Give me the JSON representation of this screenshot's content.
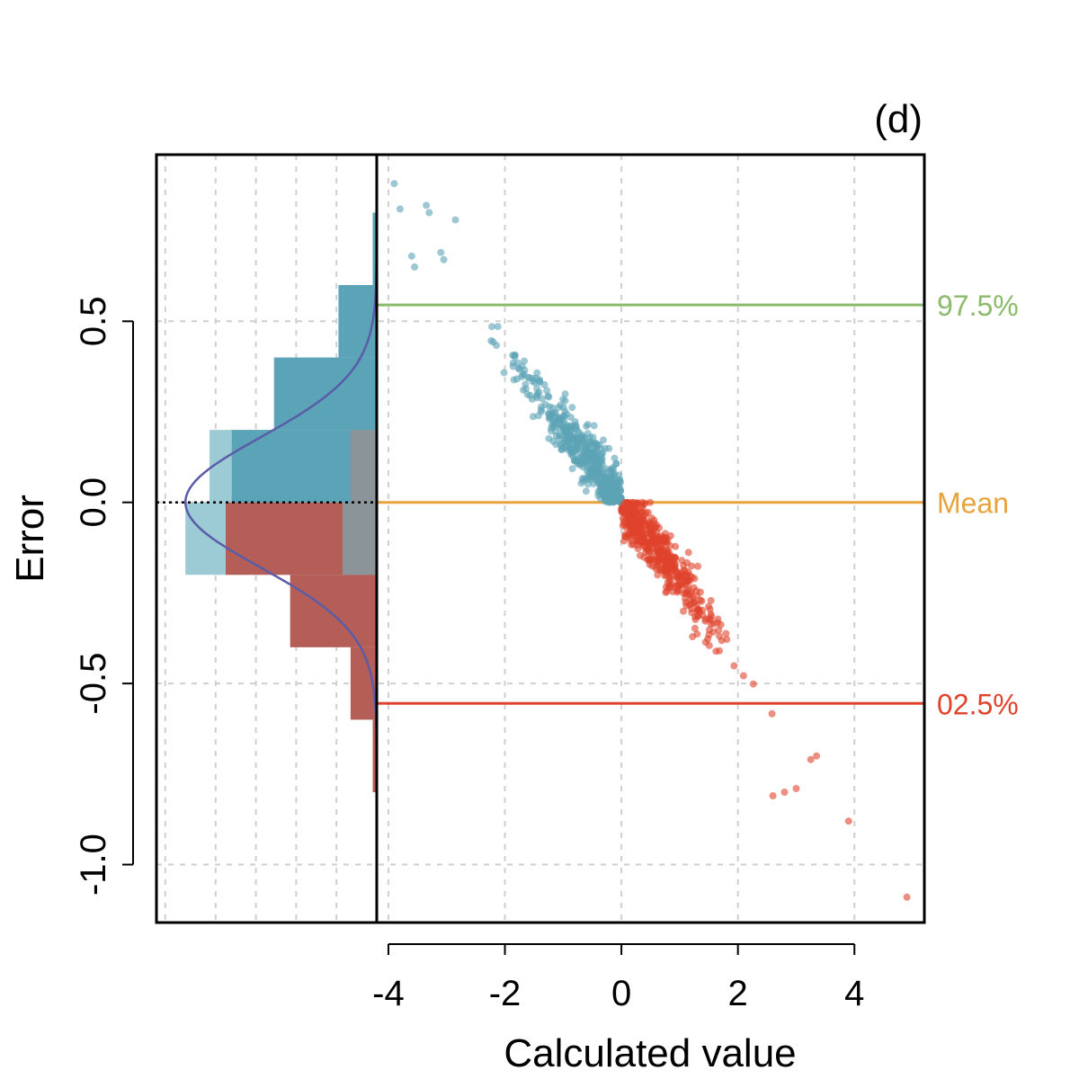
{
  "chart_data": {
    "type": "scatter",
    "panel_label": "(d)",
    "xlabel": "Calculated value",
    "ylabel": "Error",
    "xlim": [
      -4.2,
      5.2
    ],
    "ylim": [
      -1.16,
      0.96
    ],
    "x_ticks": [
      -4,
      -2,
      0,
      2,
      4
    ],
    "x_tick_labels": [
      "-4",
      "-2",
      "0",
      "2",
      "4"
    ],
    "y_ticks": [
      -1.0,
      -0.5,
      0.0,
      0.5
    ],
    "y_tick_labels": [
      "-1.0",
      "-0.5",
      "0.0",
      "0.5"
    ],
    "grid": true,
    "reference_lines": [
      {
        "name": "upper-quantile",
        "label": "97.5%",
        "value": 0.545,
        "color": "#8aba6a"
      },
      {
        "name": "mean",
        "label": "Mean",
        "value": 0.0,
        "color": "#e8a33d"
      },
      {
        "name": "lower-quantile",
        "label": "02.5%",
        "value": -0.555,
        "color": "#e0432b"
      }
    ],
    "zero_dotted_line": 0.0,
    "scatter": {
      "relationship": "error ≈ -0.2 × calculated value",
      "n_points_approx": 1000,
      "positive_error_color": "#5ba3b6",
      "negative_error_color": "#e0432b",
      "outliers": [
        {
          "x": -3.9,
          "y": 0.88
        },
        {
          "x": -3.8,
          "y": 0.81
        },
        {
          "x": -3.35,
          "y": 0.82
        },
        {
          "x": -3.3,
          "y": 0.8
        },
        {
          "x": -2.85,
          "y": 0.78
        },
        {
          "x": -3.1,
          "y": 0.69
        },
        {
          "x": -3.6,
          "y": 0.68
        },
        {
          "x": -3.55,
          "y": 0.65
        },
        {
          "x": -3.05,
          "y": 0.67
        },
        {
          "x": 2.6,
          "y": -0.81
        },
        {
          "x": 2.8,
          "y": -0.8
        },
        {
          "x": 3.0,
          "y": -0.79
        },
        {
          "x": 3.25,
          "y": -0.71
        },
        {
          "x": 3.35,
          "y": -0.7
        },
        {
          "x": 3.9,
          "y": -0.88
        },
        {
          "x": 4.9,
          "y": -1.09
        }
      ]
    },
    "histogram": {
      "orientation": "horizontal",
      "bin_edges": [
        -0.8,
        -0.6,
        -0.4,
        -0.2,
        0.0,
        0.2,
        0.4,
        0.6,
        0.8
      ],
      "negative_error_bars": [
        {
          "from": -0.8,
          "to": -0.6,
          "value": 0.02
        },
        {
          "from": -0.6,
          "to": -0.4,
          "value": 0.13
        },
        {
          "from": -0.4,
          "to": -0.2,
          "value": 0.43
        },
        {
          "from": -0.2,
          "to": 0.0,
          "value": 0.75
        }
      ],
      "positive_error_bars": [
        {
          "from": 0.0,
          "to": 0.2,
          "value": 0.72
        },
        {
          "from": 0.2,
          "to": 0.4,
          "value": 0.51
        },
        {
          "from": 0.4,
          "to": 0.6,
          "value": 0.19
        },
        {
          "from": 0.6,
          "to": 0.8,
          "value": 0.02
        }
      ],
      "light_overlay_bars": [
        {
          "from": -0.2,
          "to": 0.0,
          "value": 0.95
        },
        {
          "from": 0.0,
          "to": 0.2,
          "value": 0.83
        }
      ],
      "gray_overlay_bars": [
        {
          "from": -0.2,
          "to": 0.0,
          "value": 0.17
        },
        {
          "from": 0.0,
          "to": 0.2,
          "value": 0.13
        }
      ],
      "density_curve": {
        "type": "normal",
        "mean": 0.0,
        "sd": 0.18,
        "peak": 0.95,
        "color": "#5a5ca8"
      },
      "colors": {
        "positive": "#5ba3b6",
        "negative": "#b55e57",
        "light_overlay": "#9ccbd6",
        "gray_overlay": "#8b9499"
      }
    }
  }
}
